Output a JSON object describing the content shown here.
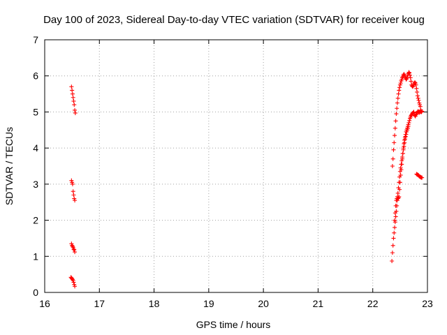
{
  "chart_data": {
    "type": "scatter",
    "title": "Day 100 of 2023, Sidereal Day-to-day VTEC variation (SDTVAR) for receiver koug",
    "xlabel": "GPS time / hours",
    "ylabel": "SDTVAR / TECUs",
    "xlim": [
      16,
      23
    ],
    "ylim": [
      0,
      7
    ],
    "xticks": [
      16,
      17,
      18,
      19,
      20,
      21,
      22,
      23
    ],
    "yticks": [
      0,
      1,
      2,
      3,
      4,
      5,
      6,
      7
    ],
    "grid": true,
    "legend": "none",
    "marker": "plus",
    "color": "#ff0000",
    "series": [
      {
        "x": [
          16.49,
          16.5,
          16.51,
          16.52,
          16.53,
          16.54,
          16.55,
          16.56,
          16.49,
          16.5,
          16.51,
          16.52,
          16.53,
          16.54,
          16.55,
          16.49,
          16.5,
          16.51,
          16.52,
          16.53,
          16.54,
          16.55,
          16.48,
          16.49,
          16.5,
          16.51,
          16.52,
          16.53,
          16.54,
          16.55
        ],
        "y": [
          5.7,
          5.6,
          5.5,
          5.4,
          5.3,
          5.2,
          5.05,
          4.97,
          3.1,
          3.05,
          3.0,
          2.8,
          2.7,
          2.6,
          2.55,
          1.35,
          1.3,
          1.28,
          1.25,
          1.2,
          1.18,
          1.12,
          0.42,
          0.4,
          0.38,
          0.36,
          0.33,
          0.28,
          0.22,
          0.17
        ]
      },
      {
        "x": [
          22.36,
          22.37,
          22.38,
          22.39,
          22.4,
          22.41,
          22.42,
          22.43,
          22.44,
          22.45,
          22.46,
          22.47,
          22.48,
          22.49,
          22.5,
          22.51,
          22.52,
          22.53,
          22.54,
          22.55,
          22.56,
          22.57,
          22.58,
          22.59,
          22.6,
          22.61,
          22.62,
          22.63,
          22.64,
          22.65,
          22.66,
          22.67,
          22.68,
          22.69,
          22.7,
          22.71,
          22.72,
          22.73,
          22.74,
          22.75,
          22.76,
          22.77,
          22.78,
          22.79,
          22.8,
          22.81,
          22.82,
          22.83,
          22.84,
          22.85,
          22.86,
          22.87,
          22.88,
          22.89,
          22.9
        ],
        "y": [
          3.5,
          3.7,
          3.95,
          4.15,
          4.35,
          4.55,
          4.75,
          4.95,
          5.1,
          5.25,
          5.38,
          5.5,
          5.6,
          5.68,
          5.75,
          5.8,
          5.86,
          5.9,
          5.95,
          5.98,
          6.02,
          6.05,
          6.02,
          5.98,
          5.94,
          5.9,
          5.92,
          5.96,
          6.02,
          6.06,
          6.1,
          6.08,
          6.02,
          5.95,
          5.85,
          5.75,
          5.72,
          5.7,
          5.72,
          5.76,
          5.8,
          5.82,
          5.8,
          5.75,
          5.65,
          5.55,
          5.45,
          5.38,
          5.32,
          5.25,
          5.2,
          5.15,
          5.05,
          5.0,
          5.02
        ]
      },
      {
        "x": [
          22.35,
          22.36,
          22.37,
          22.38,
          22.39,
          22.4,
          22.41,
          22.42,
          22.43,
          22.44,
          22.45,
          22.46,
          22.47,
          22.48,
          22.49,
          22.5,
          22.51,
          22.52,
          22.53,
          22.54,
          22.55,
          22.56,
          22.57,
          22.58,
          22.59,
          22.6,
          22.61,
          22.62,
          22.63,
          22.64,
          22.65,
          22.66,
          22.67,
          22.68,
          22.69,
          22.7,
          22.71,
          22.72,
          22.73,
          22.74,
          22.75,
          22.76,
          22.77,
          22.78,
          22.79,
          22.8,
          22.81,
          22.82,
          22.83,
          22.84,
          22.85,
          22.86,
          22.87,
          22.88,
          22.89
        ],
        "y": [
          0.87,
          1.1,
          1.3,
          1.5,
          1.65,
          1.8,
          1.95,
          2.1,
          2.25,
          2.4,
          2.55,
          2.6,
          2.62,
          2.65,
          2.85,
          3.05,
          3.25,
          3.4,
          3.55,
          3.7,
          3.85,
          4.0,
          4.12,
          4.22,
          4.3,
          4.38,
          4.45,
          4.5,
          4.55,
          4.6,
          4.65,
          4.7,
          4.76,
          4.82,
          4.86,
          4.9,
          4.92,
          4.95,
          4.97,
          4.98,
          5.0,
          4.95,
          4.9,
          4.88,
          4.92,
          4.95,
          4.98,
          5.0,
          5.02,
          5.0,
          4.98,
          5.0,
          5.02,
          5.0,
          5.0
        ]
      },
      {
        "x": [
          22.4,
          22.41,
          22.42,
          22.43,
          22.44,
          22.45,
          22.46,
          22.47,
          22.48,
          22.49,
          22.5,
          22.51,
          22.52,
          22.53,
          22.54,
          22.55,
          22.56,
          22.57,
          22.58,
          22.59,
          22.6,
          22.61,
          22.62,
          22.63,
          22.64,
          22.65
        ],
        "y": [
          2.0,
          2.2,
          2.4,
          2.55,
          2.6,
          2.65,
          2.75,
          2.9,
          3.05,
          3.2,
          3.35,
          3.45,
          3.55,
          3.65,
          3.75,
          3.85,
          3.95,
          4.05,
          4.15,
          4.25,
          4.32,
          4.38,
          4.45,
          4.5,
          4.55,
          4.6
        ]
      },
      {
        "x": [
          22.8,
          22.81,
          22.82,
          22.83,
          22.84,
          22.85,
          22.86,
          22.87,
          22.88,
          22.89,
          22.9
        ],
        "y": [
          3.28,
          3.27,
          3.26,
          3.25,
          3.24,
          3.22,
          3.21,
          3.2,
          3.19,
          3.18,
          3.18
        ]
      }
    ]
  }
}
